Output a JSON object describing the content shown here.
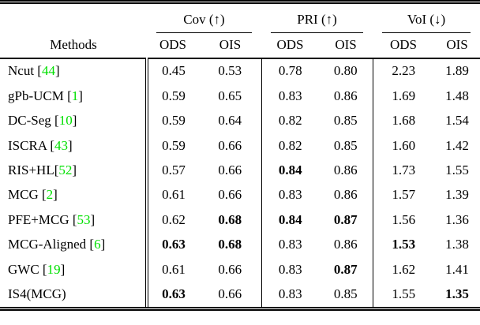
{
  "colors": {
    "citation_green": "#00e000",
    "rule_black": "#000000",
    "background": "#ffffff"
  },
  "table": {
    "methods_header": "Methods",
    "groups": [
      {
        "label": "Cov (↑)",
        "sub": [
          "ODS",
          "OIS"
        ]
      },
      {
        "label": "PRI (↑)",
        "sub": [
          "ODS",
          "OIS"
        ]
      },
      {
        "label": "VoI (↓)",
        "sub": [
          "ODS",
          "OIS"
        ]
      }
    ],
    "rows": [
      {
        "pre": "Ncut [",
        "cite": "44",
        "post": "]",
        "values": [
          {
            "v": "0.45",
            "b": false
          },
          {
            "v": "0.53",
            "b": false
          },
          {
            "v": "0.78",
            "b": false
          },
          {
            "v": "0.80",
            "b": false
          },
          {
            "v": "2.23",
            "b": false
          },
          {
            "v": "1.89",
            "b": false
          }
        ]
      },
      {
        "pre": "gPb-UCM [",
        "cite": "1",
        "post": "]",
        "values": [
          {
            "v": "0.59",
            "b": false
          },
          {
            "v": "0.65",
            "b": false
          },
          {
            "v": "0.83",
            "b": false
          },
          {
            "v": "0.86",
            "b": false
          },
          {
            "v": "1.69",
            "b": false
          },
          {
            "v": "1.48",
            "b": false
          }
        ]
      },
      {
        "pre": "DC-Seg [",
        "cite": "10",
        "post": "]",
        "values": [
          {
            "v": "0.59",
            "b": false
          },
          {
            "v": "0.64",
            "b": false
          },
          {
            "v": "0.82",
            "b": false
          },
          {
            "v": "0.85",
            "b": false
          },
          {
            "v": "1.68",
            "b": false
          },
          {
            "v": "1.54",
            "b": false
          }
        ]
      },
      {
        "pre": "ISCRA [",
        "cite": "43",
        "post": "]",
        "values": [
          {
            "v": "0.59",
            "b": false
          },
          {
            "v": "0.66",
            "b": false
          },
          {
            "v": "0.82",
            "b": false
          },
          {
            "v": "0.85",
            "b": false
          },
          {
            "v": "1.60",
            "b": false
          },
          {
            "v": "1.42",
            "b": false
          }
        ]
      },
      {
        "pre": "RIS+HL[",
        "cite": "52",
        "post": "]",
        "values": [
          {
            "v": "0.57",
            "b": false
          },
          {
            "v": "0.66",
            "b": false
          },
          {
            "v": "0.84",
            "b": true
          },
          {
            "v": "0.86",
            "b": false
          },
          {
            "v": "1.73",
            "b": false
          },
          {
            "v": "1.55",
            "b": false
          }
        ]
      },
      {
        "pre": "MCG [",
        "cite": "2",
        "post": "]",
        "values": [
          {
            "v": "0.61",
            "b": false
          },
          {
            "v": "0.66",
            "b": false
          },
          {
            "v": "0.83",
            "b": false
          },
          {
            "v": "0.86",
            "b": false
          },
          {
            "v": "1.57",
            "b": false
          },
          {
            "v": "1.39",
            "b": false
          }
        ]
      },
      {
        "pre": "PFE+MCG [",
        "cite": "53",
        "post": "]",
        "values": [
          {
            "v": "0.62",
            "b": false
          },
          {
            "v": "0.68",
            "b": true
          },
          {
            "v": "0.84",
            "b": true
          },
          {
            "v": "0.87",
            "b": true
          },
          {
            "v": "1.56",
            "b": false
          },
          {
            "v": "1.36",
            "b": false
          }
        ]
      },
      {
        "pre": "MCG-Aligned [",
        "cite": "6",
        "post": "]",
        "values": [
          {
            "v": "0.63",
            "b": true
          },
          {
            "v": "0.68",
            "b": true
          },
          {
            "v": "0.83",
            "b": false
          },
          {
            "v": "0.86",
            "b": false
          },
          {
            "v": "1.53",
            "b": true
          },
          {
            "v": "1.38",
            "b": false
          }
        ]
      },
      {
        "pre": "GWC [",
        "cite": "19",
        "post": "]",
        "values": [
          {
            "v": "0.61",
            "b": false
          },
          {
            "v": "0.66",
            "b": false
          },
          {
            "v": "0.83",
            "b": false
          },
          {
            "v": "0.87",
            "b": true
          },
          {
            "v": "1.62",
            "b": false
          },
          {
            "v": "1.41",
            "b": false
          }
        ]
      },
      {
        "pre": "IS4(MCG)",
        "cite": "",
        "post": "",
        "values": [
          {
            "v": "0.63",
            "b": true
          },
          {
            "v": "0.66",
            "b": false
          },
          {
            "v": "0.83",
            "b": false
          },
          {
            "v": "0.85",
            "b": false
          },
          {
            "v": "1.55",
            "b": false
          },
          {
            "v": "1.35",
            "b": true
          }
        ]
      }
    ]
  }
}
